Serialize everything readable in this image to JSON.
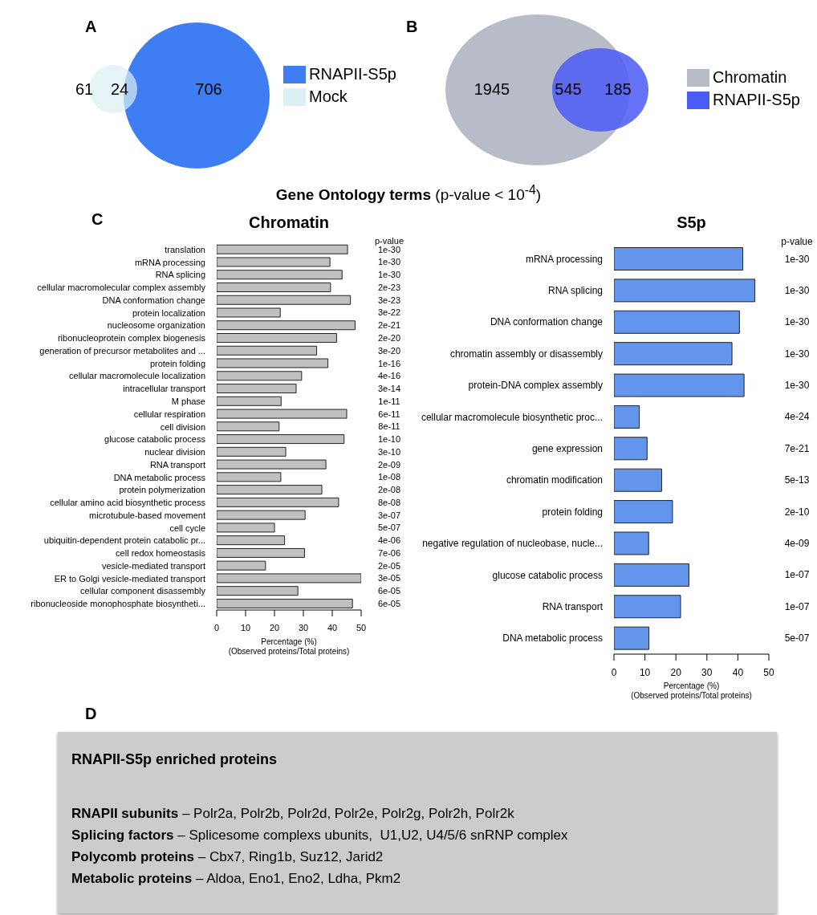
{
  "chart_data": [
    {
      "type": "other",
      "annotations": [
        "A",
        "61",
        "24",
        "706"
      ],
      "legend": "right",
      "series": [
        {
          "name": "RNAPII-S5p",
          "color": "#3f7ef2"
        },
        {
          "name": "Mock",
          "color": "#dcf0f5"
        }
      ]
    },
    {
      "type": "other",
      "annotations": [
        "B",
        "1945",
        "545",
        "185"
      ],
      "legend": "right",
      "series": [
        {
          "name": "Chromatin",
          "color": "#b8bcc8"
        },
        {
          "name": "RNAPII-S5p",
          "color": "#4a5cf5"
        }
      ]
    },
    {
      "type": "other",
      "title": "Gene Ontology terms",
      "subtitle": "(p-value < 10$^{-4}$)"
    },
    {
      "type": "bar",
      "orientation": "horizontal",
      "title": "Chromatin",
      "xlabel": "Percentage (%)\n(Observed proteins/Total proteins)",
      "xlim": [
        0,
        50
      ],
      "xticks": [
        0,
        10,
        20,
        30,
        40,
        50
      ],
      "color": "#c0c0c0",
      "categories": [
        "translation",
        "mRNA processing",
        "RNA splicing",
        "cellular macromolecular complex assembly",
        "DNA conformation change",
        "protein localization",
        "nucleosome organization",
        "ribonucleoprotein complex biogenesis",
        "generation of precursor metabolites and ...",
        "protein folding",
        "cellular macromolecule localization",
        "intracellular transport",
        "M phase",
        "cellular respiration",
        "cell division",
        "glucose catabolic process",
        "nuclear division",
        "RNA transport",
        "DNA metabolic process",
        "protein polymerization",
        "cellular amino acid biosynthetic process",
        "microtubule-based movement",
        "cell cycle",
        "ubiquitin-dependent protein catabolic pr...",
        "cell redox homeostasis",
        "vesicle-mediated transport",
        "ER to Golgi vesicle-mediated transport",
        "cellular component disassembly",
        "ribonucleoside monophosphate biosyntheti..."
      ],
      "values": [
        45.3,
        39.2,
        43.4,
        39.4,
        46.3,
        22.0,
        47.9,
        41.5,
        34.6,
        38.5,
        29.4,
        27.5,
        22.3,
        45.0,
        21.6,
        44.1,
        23.9,
        37.8,
        22.2,
        36.4,
        42.2,
        30.6,
        20.0,
        23.5,
        30.4,
        16.9,
        50.0,
        28.1,
        47.0
      ],
      "annotations": [
        "C",
        "p-value",
        "1e-30",
        "1e-30",
        "1e-30",
        "2e-23",
        "3e-23",
        "3e-22",
        "2e-21",
        "2e-20",
        "3e-20",
        "1e-16",
        "4e-16",
        "3e-14",
        "1e-11",
        "6e-11",
        "8e-11",
        "1e-10",
        "3e-10",
        "2e-09",
        "1e-08",
        "2e-08",
        "8e-08",
        "3e-07",
        "5e-07",
        "4e-06",
        "7e-06",
        "2e-05",
        "3e-05",
        "6e-05",
        "6e-05"
      ]
    },
    {
      "type": "bar",
      "orientation": "horizontal",
      "title": "S5p",
      "xlabel": "Percentage (%)\n(Observed proteins/Total proteins)",
      "xlim": [
        0,
        50
      ],
      "xticks": [
        0,
        10,
        20,
        30,
        40,
        50
      ],
      "color": "#6495ed",
      "categories": [
        "mRNA processing",
        "RNA splicing",
        "DNA conformation change",
        "chromatin assembly or disassembly",
        "protein-DNA complex assembly",
        "cellular macromolecule biosynthetic proc...",
        "gene expression",
        "chromatin modification",
        "protein folding",
        "negative regulation of nucleobase, nucle...",
        "glucose catabolic process",
        "RNA transport",
        "DNA metabolic process"
      ],
      "values": [
        41.6,
        45.5,
        40.5,
        38.1,
        42.0,
        8.2,
        10.7,
        15.4,
        18.9,
        11.2,
        24.2,
        21.5,
        11.3
      ],
      "annotations": [
        "p-value",
        "1e-30",
        "1e-30",
        "1e-30",
        "1e-30",
        "1e-30",
        "4e-24",
        "7e-21",
        "5e-13",
        "2e-10",
        "4e-09",
        "1e-07",
        "1e-07",
        "5e-07"
      ]
    },
    {
      "type": "other",
      "title": "RNAPII-S5p enriched proteins",
      "annotations": [
        "D",
        "RNAPII subunits – Polr2a, Polr2b, Polr2d, Polr2e, Polr2g, Polr2h, Polr2k",
        "Splicing factors – Splicesome complexs ubunits,  U1,U2, U4/5/6 snRNP complex",
        "Polycomb proteins – Cbx7, Ring1b, Suz12, Jarid2",
        "Metabolic proteins – Aldoa, Eno1, Eno2, Ldha, Pkm2"
      ]
    }
  ]
}
